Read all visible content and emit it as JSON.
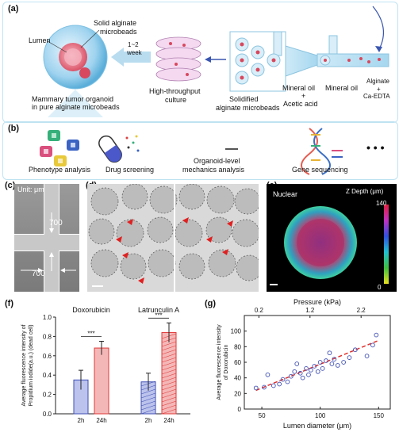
{
  "panel_labels": {
    "a": "(a)",
    "b": "(b)",
    "c": "(c)",
    "d": "(d)",
    "e": "(e)",
    "f": "(f)",
    "g": "(g)"
  },
  "panel_a": {
    "lumen": "Lumen",
    "solid_beads_1": "Solid alginate",
    "solid_beads_2": "microbeads",
    "weeks_1": "1~2",
    "weeks_2": "week",
    "organoid_caption": "Mammary tumor organoid",
    "organoid_caption2": "in pure alginate microbeads",
    "htp_1": "High-throughput",
    "htp_2": "culture",
    "solidified_1": "Solidified",
    "solidified_2": "alginate microbeads",
    "mineral_acid_1": "Mineral oil",
    "mineral_acid_2": "+",
    "mineral_acid_3": "Acetic acid",
    "mineral_oil": "Mineral oil",
    "alginate_1": "Alginate",
    "alginate_2": "+",
    "alginate_3": "Ca-EDTA"
  },
  "panel_b": {
    "phenotype": "Phenotype analysis",
    "drug": "Drug  screening",
    "mech_1": "Organoid-level",
    "mech_2": "mechanics analysis",
    "gene": "Gene sequencing",
    "ellipsis": "• • •"
  },
  "panel_c": {
    "unit": "Unit: μm",
    "v1": "700",
    "v2": "700"
  },
  "panel_e": {
    "nuclear": "Nuclear",
    "zdepth": "Z Depth (μm)",
    "z_max": "140",
    "z_min": "0"
  },
  "colors": {
    "frame": "#bfe3f2",
    "red": "#e03a3a",
    "blue": "#3f4fb5",
    "dashed": "#e0312c"
  },
  "chart_data": [
    {
      "type": "bar",
      "ylabel": "Average fluorescence intensity of Propidium iodide(a.u.) (dead cell)",
      "ylim": [
        0,
        1.0
      ],
      "yticks": [
        "0.0",
        "0.2",
        "0.4",
        "0.6",
        "0.8",
        "1.0"
      ],
      "groups": [
        {
          "name": "Doxorubicin",
          "categories": [
            "2h",
            "24h"
          ],
          "values": [
            0.35,
            0.68
          ],
          "errors": [
            0.1,
            0.07
          ],
          "sig": "***"
        },
        {
          "name": "Latrunculin A",
          "categories": [
            "2h",
            "24h"
          ],
          "values": [
            0.33,
            0.84
          ],
          "errors": [
            0.09,
            0.1
          ],
          "sig": "***"
        }
      ]
    },
    {
      "type": "scatter",
      "xlabel": "Lumen diameter (μm)",
      "x2label": "Pressure (kPa)",
      "ylabel_1": "Average fluorescence intensity",
      "ylabel_2": "of Doxorubicin",
      "xlim": [
        35,
        160
      ],
      "ylim": [
        0,
        120
      ],
      "xticks": [
        "50",
        "100",
        "150"
      ],
      "x2ticks": [
        "0.2",
        "1.2",
        "2.2"
      ],
      "yticks": [
        "0",
        "20",
        "40",
        "60",
        "80",
        "100"
      ],
      "points": [
        {
          "x": 45,
          "y": 27
        },
        {
          "x": 52,
          "y": 28
        },
        {
          "x": 55,
          "y": 44
        },
        {
          "x": 60,
          "y": 30
        },
        {
          "x": 65,
          "y": 32
        },
        {
          "x": 68,
          "y": 38
        },
        {
          "x": 72,
          "y": 35
        },
        {
          "x": 75,
          "y": 42
        },
        {
          "x": 78,
          "y": 48
        },
        {
          "x": 80,
          "y": 58
        },
        {
          "x": 83,
          "y": 46
        },
        {
          "x": 85,
          "y": 40
        },
        {
          "x": 88,
          "y": 52
        },
        {
          "x": 90,
          "y": 44
        },
        {
          "x": 92,
          "y": 50
        },
        {
          "x": 95,
          "y": 55
        },
        {
          "x": 98,
          "y": 48
        },
        {
          "x": 100,
          "y": 60
        },
        {
          "x": 102,
          "y": 52
        },
        {
          "x": 105,
          "y": 62
        },
        {
          "x": 108,
          "y": 72
        },
        {
          "x": 110,
          "y": 58
        },
        {
          "x": 112,
          "y": 64
        },
        {
          "x": 115,
          "y": 56
        },
        {
          "x": 120,
          "y": 60
        },
        {
          "x": 125,
          "y": 66
        },
        {
          "x": 130,
          "y": 76
        },
        {
          "x": 140,
          "y": 68
        },
        {
          "x": 145,
          "y": 82
        },
        {
          "x": 148,
          "y": 95
        }
      ],
      "fit": {
        "x": [
          45,
          150
        ],
        "y": [
          24,
          88
        ]
      }
    }
  ]
}
